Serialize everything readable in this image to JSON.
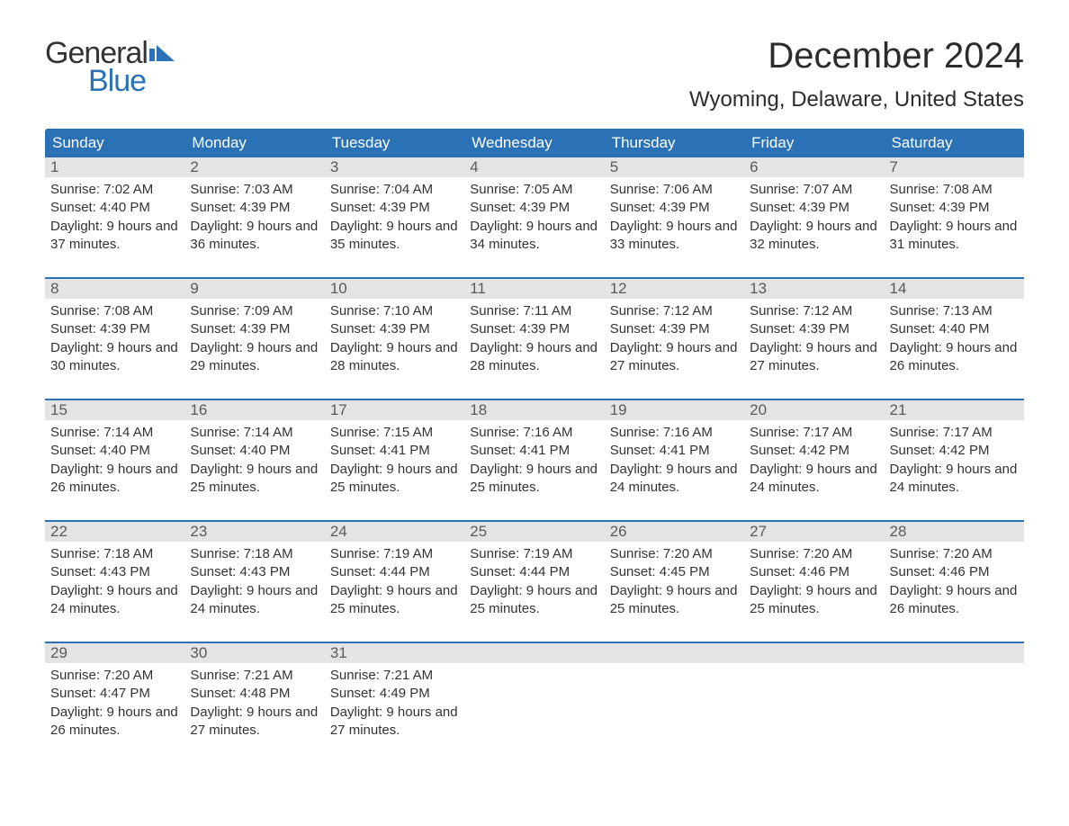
{
  "brand": {
    "word1": "General",
    "word2": "Blue",
    "flag_color": "#2a72b5"
  },
  "title": "December 2024",
  "location": "Wyoming, Delaware, United States",
  "colors": {
    "header_bg": "#2a72b5",
    "header_text": "#ffffff",
    "daynum_bg": "#e4e4e4",
    "daynum_text": "#5a5a5a",
    "body_text": "#333333",
    "week_border": "#2a72b5"
  },
  "day_names": [
    "Sunday",
    "Monday",
    "Tuesday",
    "Wednesday",
    "Thursday",
    "Friday",
    "Saturday"
  ],
  "weeks": [
    [
      {
        "n": "1",
        "sunrise": "7:02 AM",
        "sunset": "4:40 PM",
        "dl": "9 hours and 37 minutes."
      },
      {
        "n": "2",
        "sunrise": "7:03 AM",
        "sunset": "4:39 PM",
        "dl": "9 hours and 36 minutes."
      },
      {
        "n": "3",
        "sunrise": "7:04 AM",
        "sunset": "4:39 PM",
        "dl": "9 hours and 35 minutes."
      },
      {
        "n": "4",
        "sunrise": "7:05 AM",
        "sunset": "4:39 PM",
        "dl": "9 hours and 34 minutes."
      },
      {
        "n": "5",
        "sunrise": "7:06 AM",
        "sunset": "4:39 PM",
        "dl": "9 hours and 33 minutes."
      },
      {
        "n": "6",
        "sunrise": "7:07 AM",
        "sunset": "4:39 PM",
        "dl": "9 hours and 32 minutes."
      },
      {
        "n": "7",
        "sunrise": "7:08 AM",
        "sunset": "4:39 PM",
        "dl": "9 hours and 31 minutes."
      }
    ],
    [
      {
        "n": "8",
        "sunrise": "7:08 AM",
        "sunset": "4:39 PM",
        "dl": "9 hours and 30 minutes."
      },
      {
        "n": "9",
        "sunrise": "7:09 AM",
        "sunset": "4:39 PM",
        "dl": "9 hours and 29 minutes."
      },
      {
        "n": "10",
        "sunrise": "7:10 AM",
        "sunset": "4:39 PM",
        "dl": "9 hours and 28 minutes."
      },
      {
        "n": "11",
        "sunrise": "7:11 AM",
        "sunset": "4:39 PM",
        "dl": "9 hours and 28 minutes."
      },
      {
        "n": "12",
        "sunrise": "7:12 AM",
        "sunset": "4:39 PM",
        "dl": "9 hours and 27 minutes."
      },
      {
        "n": "13",
        "sunrise": "7:12 AM",
        "sunset": "4:39 PM",
        "dl": "9 hours and 27 minutes."
      },
      {
        "n": "14",
        "sunrise": "7:13 AM",
        "sunset": "4:40 PM",
        "dl": "9 hours and 26 minutes."
      }
    ],
    [
      {
        "n": "15",
        "sunrise": "7:14 AM",
        "sunset": "4:40 PM",
        "dl": "9 hours and 26 minutes."
      },
      {
        "n": "16",
        "sunrise": "7:14 AM",
        "sunset": "4:40 PM",
        "dl": "9 hours and 25 minutes."
      },
      {
        "n": "17",
        "sunrise": "7:15 AM",
        "sunset": "4:41 PM",
        "dl": "9 hours and 25 minutes."
      },
      {
        "n": "18",
        "sunrise": "7:16 AM",
        "sunset": "4:41 PM",
        "dl": "9 hours and 25 minutes."
      },
      {
        "n": "19",
        "sunrise": "7:16 AM",
        "sunset": "4:41 PM",
        "dl": "9 hours and 24 minutes."
      },
      {
        "n": "20",
        "sunrise": "7:17 AM",
        "sunset": "4:42 PM",
        "dl": "9 hours and 24 minutes."
      },
      {
        "n": "21",
        "sunrise": "7:17 AM",
        "sunset": "4:42 PM",
        "dl": "9 hours and 24 minutes."
      }
    ],
    [
      {
        "n": "22",
        "sunrise": "7:18 AM",
        "sunset": "4:43 PM",
        "dl": "9 hours and 24 minutes."
      },
      {
        "n": "23",
        "sunrise": "7:18 AM",
        "sunset": "4:43 PM",
        "dl": "9 hours and 24 minutes."
      },
      {
        "n": "24",
        "sunrise": "7:19 AM",
        "sunset": "4:44 PM",
        "dl": "9 hours and 25 minutes."
      },
      {
        "n": "25",
        "sunrise": "7:19 AM",
        "sunset": "4:44 PM",
        "dl": "9 hours and 25 minutes."
      },
      {
        "n": "26",
        "sunrise": "7:20 AM",
        "sunset": "4:45 PM",
        "dl": "9 hours and 25 minutes."
      },
      {
        "n": "27",
        "sunrise": "7:20 AM",
        "sunset": "4:46 PM",
        "dl": "9 hours and 25 minutes."
      },
      {
        "n": "28",
        "sunrise": "7:20 AM",
        "sunset": "4:46 PM",
        "dl": "9 hours and 26 minutes."
      }
    ],
    [
      {
        "n": "29",
        "sunrise": "7:20 AM",
        "sunset": "4:47 PM",
        "dl": "9 hours and 26 minutes."
      },
      {
        "n": "30",
        "sunrise": "7:21 AM",
        "sunset": "4:48 PM",
        "dl": "9 hours and 27 minutes."
      },
      {
        "n": "31",
        "sunrise": "7:21 AM",
        "sunset": "4:49 PM",
        "dl": "9 hours and 27 minutes."
      },
      null,
      null,
      null,
      null
    ]
  ],
  "labels": {
    "sunrise": "Sunrise: ",
    "sunset": "Sunset: ",
    "daylight": "Daylight: "
  }
}
